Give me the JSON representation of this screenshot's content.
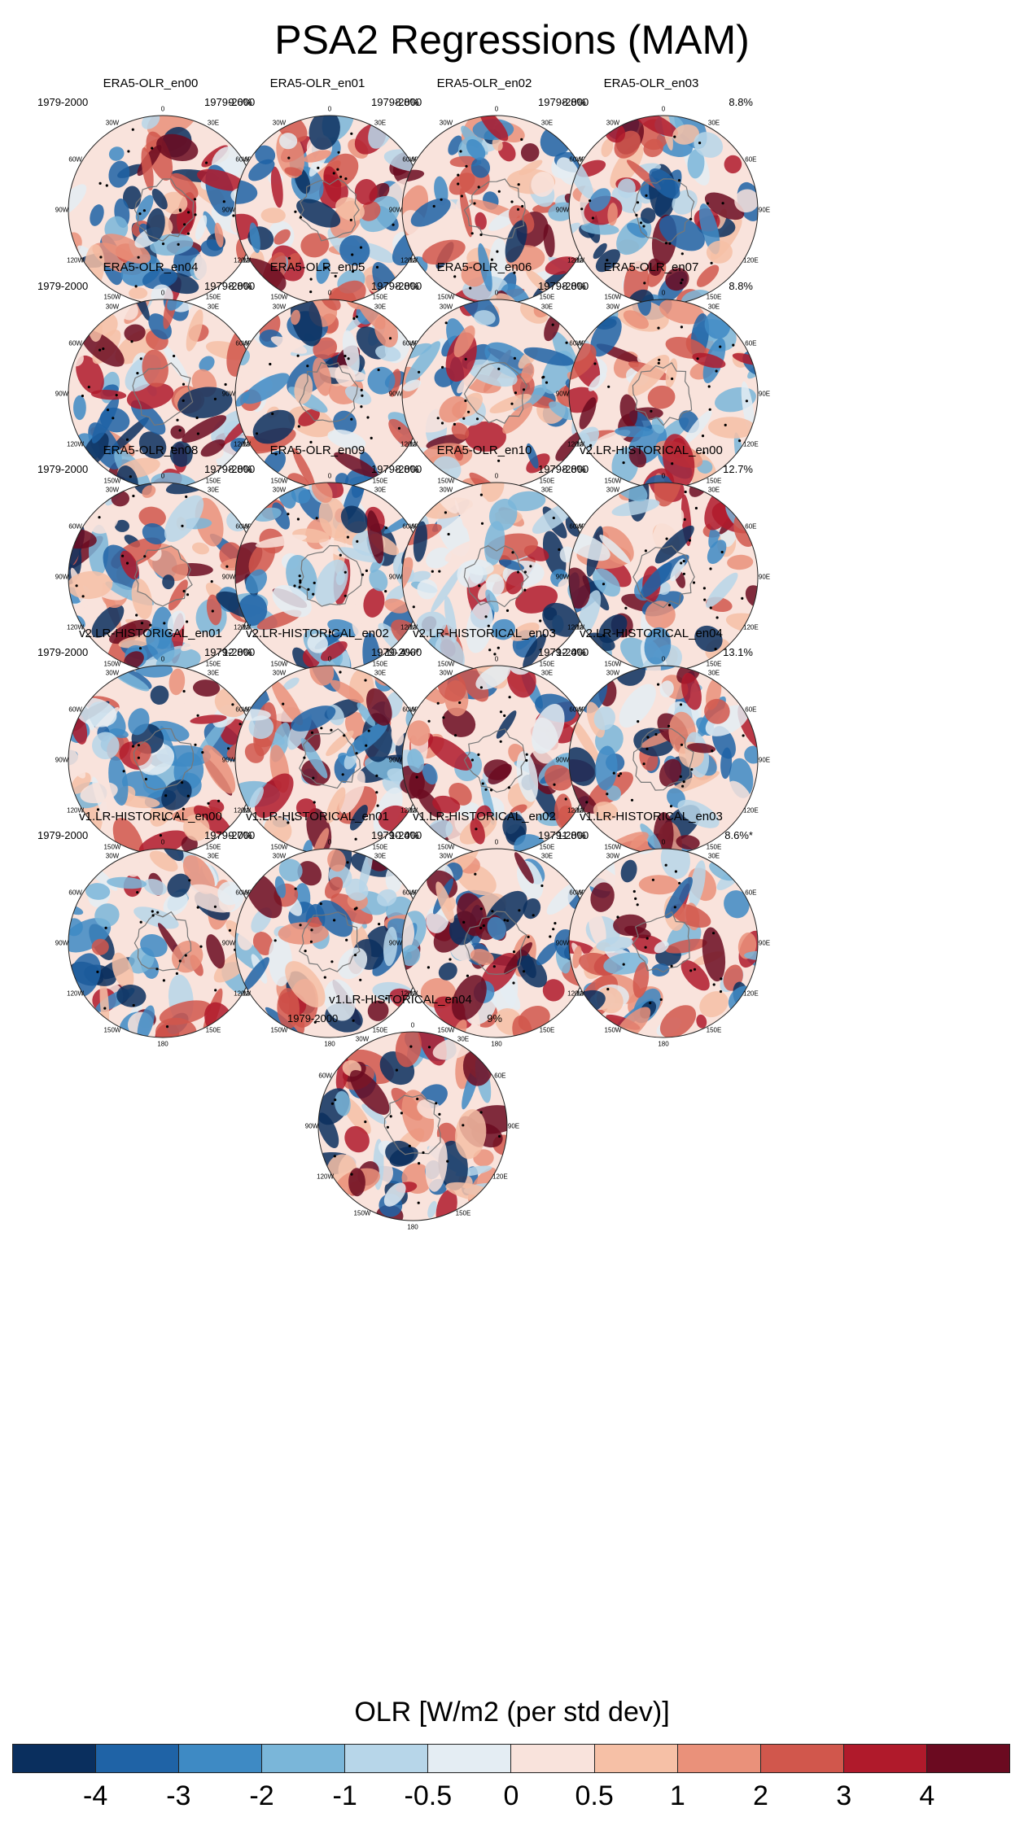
{
  "title": "PSA2 Regressions (MAM)",
  "chart_data": {
    "type": "polar-stereographic contour map panels (Southern Hemisphere)",
    "variable": "OLR [W/m2 (per std dev)]",
    "period": "1979-2000",
    "longitude_labels": [
      "0",
      "30E",
      "60E",
      "90E",
      "120E",
      "150E",
      "180",
      "150W",
      "120W",
      "90W",
      "60W",
      "30W"
    ],
    "panels": [
      {
        "title": "ERA5-OLR_en00",
        "years": "1979-2000",
        "percent": "9.6%"
      },
      {
        "title": "ERA5-OLR_en01",
        "years": "1979-2000",
        "percent": "8.8%"
      },
      {
        "title": "ERA5-OLR_en02",
        "years": "1979-2000",
        "percent": "8.8%"
      },
      {
        "title": "ERA5-OLR_en03",
        "years": "1979-2000",
        "percent": "8.8%"
      },
      {
        "title": "ERA5-OLR_en04",
        "years": "1979-2000",
        "percent": "8.8%"
      },
      {
        "title": "ERA5-OLR_en05",
        "years": "1979-2000",
        "percent": "8.8%"
      },
      {
        "title": "ERA5-OLR_en06",
        "years": "1979-2000",
        "percent": "8.8%"
      },
      {
        "title": "ERA5-OLR_en07",
        "years": "1979-2000",
        "percent": "8.8%"
      },
      {
        "title": "ERA5-OLR_en08",
        "years": "1979-2000",
        "percent": "8.8%"
      },
      {
        "title": "ERA5-OLR_en09",
        "years": "1979-2000",
        "percent": "8.8%"
      },
      {
        "title": "ERA5-OLR_en10",
        "years": "1979-2000",
        "percent": "8.8%"
      },
      {
        "title": "v2.LR-HISTORICAL_en00",
        "years": "1979-2000",
        "percent": "12.7%"
      },
      {
        "title": "v2.LR-HISTORICAL_en01",
        "years": "1979-2000",
        "percent": "12.8%"
      },
      {
        "title": "v2.LR-HISTORICAL_en02",
        "years": "1979-2000",
        "percent": "10.4%*"
      },
      {
        "title": "v2.LR-HISTORICAL_en03",
        "years": "1979-2000",
        "percent": "12.4%"
      },
      {
        "title": "v2.LR-HISTORICAL_en04",
        "years": "1979-2000",
        "percent": "13.1%"
      },
      {
        "title": "v1.LR-HISTORICAL_en00",
        "years": "1979-2000",
        "percent": "9.7%"
      },
      {
        "title": "v1.LR-HISTORICAL_en01",
        "years": "1979-2000",
        "percent": "10.4%"
      },
      {
        "title": "v1.LR-HISTORICAL_en02",
        "years": "1979-2000",
        "percent": "11.8%"
      },
      {
        "title": "v1.LR-HISTORICAL_en03",
        "years": "1979-2000",
        "percent": "8.6%*"
      },
      {
        "title": "v1.LR-HISTORICAL_en04",
        "years": "1979-2000",
        "percent": "9%"
      }
    ],
    "colorbar": {
      "title": "OLR [W/m2 (per std dev)]",
      "levels": [
        "-4",
        "-3",
        "-2",
        "-1",
        "-0.5",
        "0",
        "0.5",
        "1",
        "2",
        "3",
        "4"
      ],
      "colors": [
        "#0a2f5e",
        "#1f63a6",
        "#3e8ac4",
        "#7ab6d9",
        "#b7d6e9",
        "#e4edf3",
        "#f9e3dc",
        "#f6c0a6",
        "#ea917a",
        "#d1574c",
        "#b01a2b",
        "#6b0a20"
      ]
    }
  }
}
